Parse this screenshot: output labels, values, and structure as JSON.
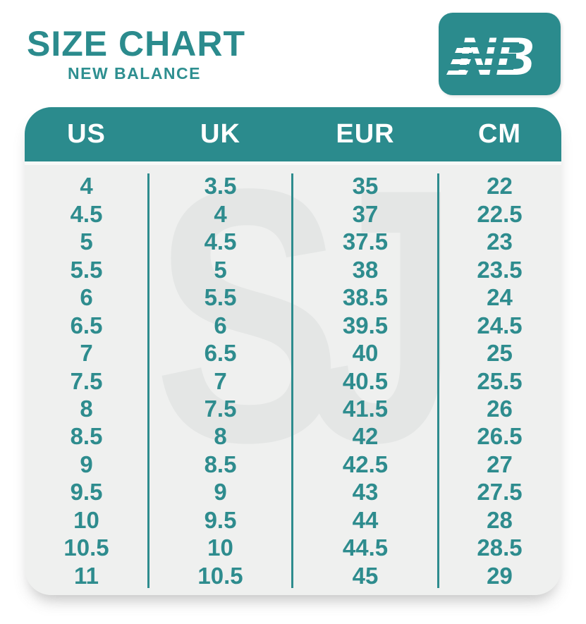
{
  "header": {
    "title": "SIZE CHART",
    "subtitle": "NEW BALANCE"
  },
  "logo": {
    "brand": "New Balance",
    "monogram": "NB"
  },
  "watermark": "SJ",
  "colors": {
    "teal": "#2b8b8d",
    "text_teal": "#2e8c8e",
    "table_body_bg": "#eff0ef",
    "watermark_gray": "#e4e6e5",
    "header_text": "#ffffff",
    "page_bg": "#ffffff"
  },
  "chart_data": {
    "type": "table",
    "title": "SIZE CHART",
    "subtitle": "NEW BALANCE",
    "columns": [
      "US",
      "UK",
      "EUR",
      "CM"
    ],
    "rows": [
      [
        "4",
        "3.5",
        "35",
        "22"
      ],
      [
        "4.5",
        "4",
        "37",
        "22.5"
      ],
      [
        "5",
        "4.5",
        "37.5",
        "23"
      ],
      [
        "5.5",
        "5",
        "38",
        "23.5"
      ],
      [
        "6",
        "5.5",
        "38.5",
        "24"
      ],
      [
        "6.5",
        "6",
        "39.5",
        "24.5"
      ],
      [
        "7",
        "6.5",
        "40",
        "25"
      ],
      [
        "7.5",
        "7",
        "40.5",
        "25.5"
      ],
      [
        "8",
        "7.5",
        "41.5",
        "26"
      ],
      [
        "8.5",
        "8",
        "42",
        "26.5"
      ],
      [
        "9",
        "8.5",
        "42.5",
        "27"
      ],
      [
        "9.5",
        "9",
        "43",
        "27.5"
      ],
      [
        "10",
        "9.5",
        "44",
        "28"
      ],
      [
        "10.5",
        "10",
        "44.5",
        "28.5"
      ],
      [
        "11",
        "10.5",
        "45",
        "29"
      ]
    ],
    "layout": {
      "header_fill": "#2b8b8d",
      "body_fill": "#eff0ef",
      "column_dividers": true,
      "row_gridlines": false
    }
  }
}
